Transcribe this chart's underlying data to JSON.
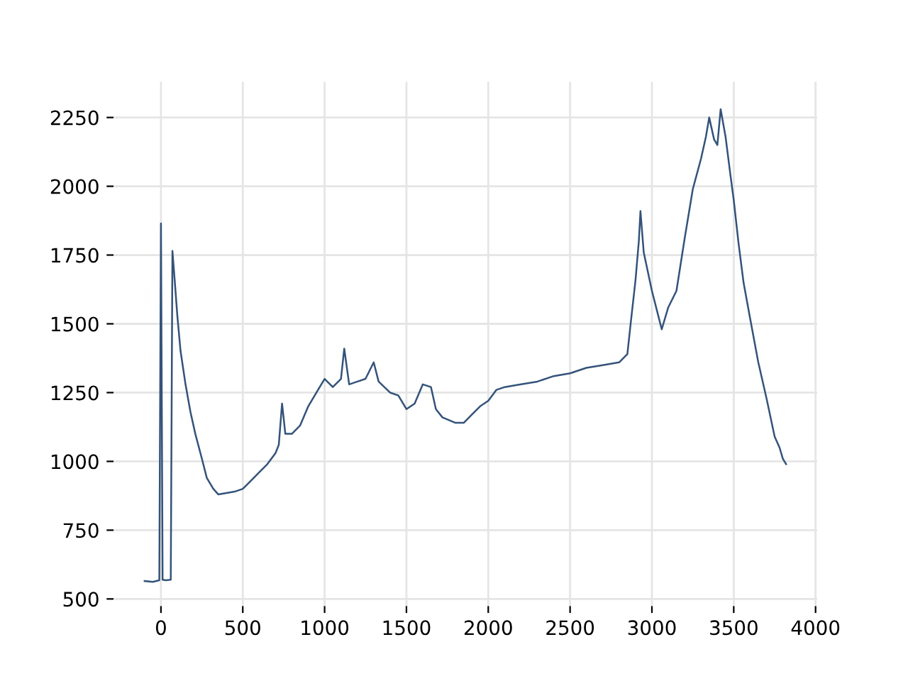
{
  "chart_data": {
    "type": "line",
    "x": [
      -100,
      -50,
      -10,
      0,
      10,
      30,
      60,
      70,
      85,
      100,
      120,
      150,
      180,
      210,
      250,
      280,
      320,
      350,
      400,
      450,
      500,
      550,
      600,
      650,
      700,
      720,
      740,
      760,
      800,
      850,
      900,
      950,
      1000,
      1050,
      1100,
      1120,
      1150,
      1200,
      1250,
      1300,
      1330,
      1400,
      1450,
      1500,
      1550,
      1600,
      1650,
      1680,
      1720,
      1800,
      1850,
      1900,
      1950,
      2000,
      2050,
      2100,
      2200,
      2300,
      2400,
      2500,
      2600,
      2700,
      2800,
      2850,
      2870,
      2900,
      2920,
      2930,
      2950,
      3000,
      3030,
      3060,
      3100,
      3150,
      3200,
      3250,
      3300,
      3330,
      3350,
      3380,
      3400,
      3420,
      3450,
      3480,
      3500,
      3530,
      3560,
      3600,
      3650,
      3700,
      3750,
      3780,
      3800,
      3820
    ],
    "series": [
      {
        "color": "#34537a",
        "values": [
          565,
          562,
          568,
          1865,
          570,
          568,
          570,
          1765,
          1650,
          1530,
          1400,
          1280,
          1180,
          1100,
          1010,
          940,
          900,
          880,
          885,
          890,
          900,
          930,
          960,
          990,
          1030,
          1060,
          1210,
          1100,
          1100,
          1130,
          1200,
          1250,
          1300,
          1270,
          1300,
          1410,
          1280,
          1290,
          1300,
          1360,
          1290,
          1250,
          1240,
          1190,
          1210,
          1280,
          1270,
          1190,
          1160,
          1140,
          1140,
          1170,
          1200,
          1220,
          1260,
          1270,
          1280,
          1290,
          1310,
          1320,
          1340,
          1350,
          1360,
          1390,
          1500,
          1660,
          1800,
          1910,
          1760,
          1620,
          1550,
          1480,
          1560,
          1620,
          1810,
          1990,
          2100,
          2180,
          2250,
          2170,
          2150,
          2280,
          2180,
          2040,
          1950,
          1790,
          1650,
          1520,
          1360,
          1230,
          1090,
          1050,
          1010,
          990
        ]
      }
    ],
    "xlim": [
      -290,
      4010
    ],
    "ylim": [
      474,
      2380
    ],
    "xticks": [
      0,
      500,
      1000,
      1500,
      2000,
      2500,
      3000,
      3500,
      4000
    ],
    "yticks": [
      500,
      750,
      1000,
      1250,
      1500,
      1750,
      2000,
      2250
    ],
    "grid": true
  }
}
